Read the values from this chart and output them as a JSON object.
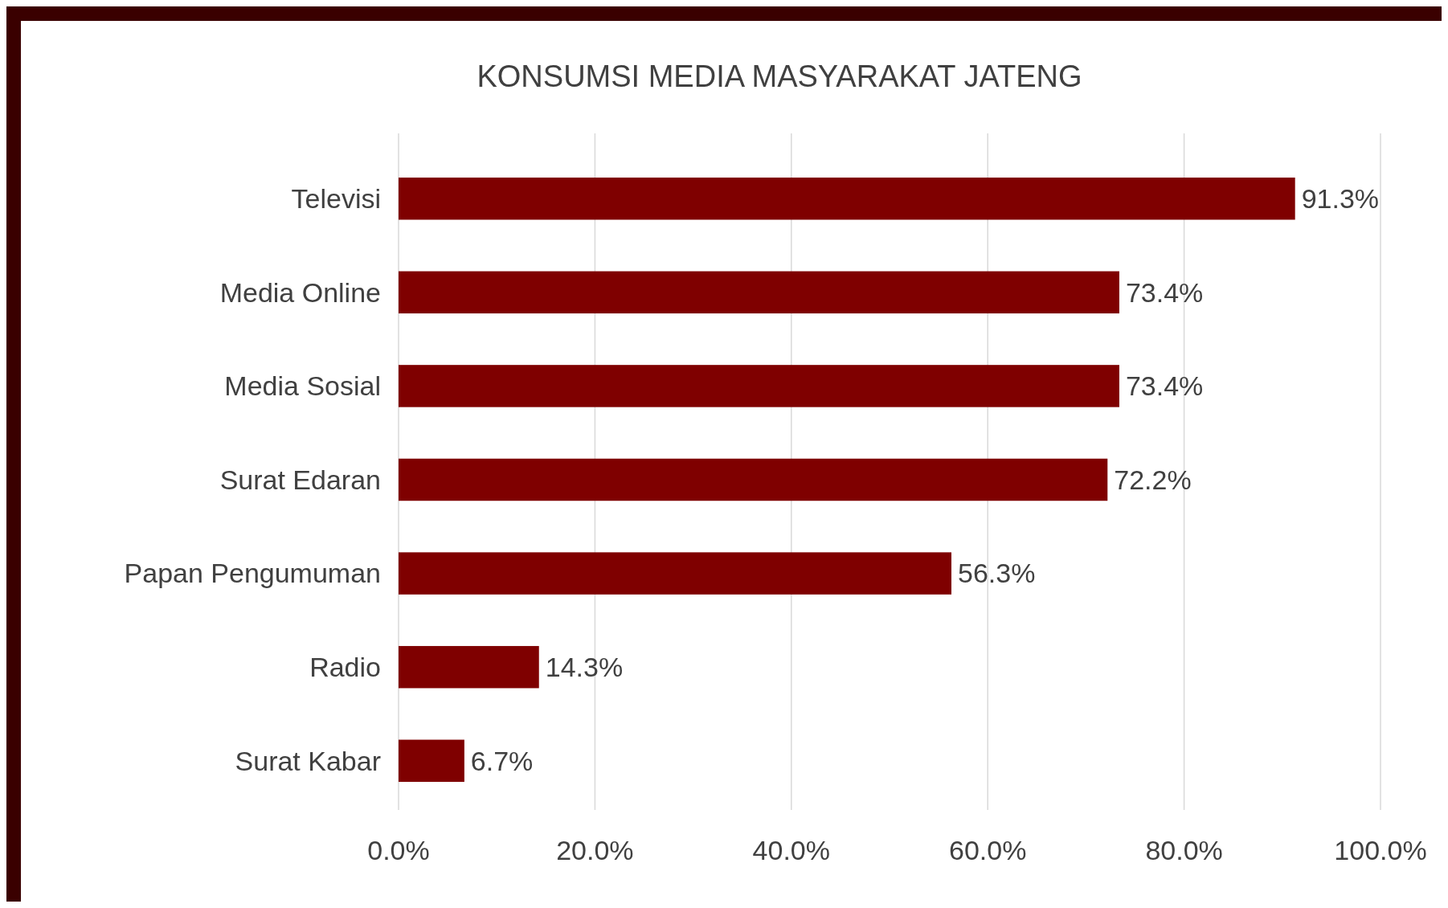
{
  "chart_data": {
    "type": "bar",
    "orientation": "horizontal",
    "title": "KONSUMSI MEDIA MASYARAKAT JATENG",
    "categories": [
      "Televisi",
      "Media Online",
      "Media Sosial",
      "Surat Edaran",
      "Papan Pengumuman",
      "Radio",
      "Surat Kabar"
    ],
    "values": [
      91.3,
      73.4,
      73.4,
      72.2,
      56.3,
      14.3,
      6.7
    ],
    "value_labels": [
      "91.3%",
      "73.4%",
      "73.4%",
      "72.2%",
      "56.3%",
      "14.3%",
      "6.7%"
    ],
    "color": "#7f0000",
    "xlim": [
      0,
      100
    ],
    "xticks": [
      {
        "value": 0,
        "label": "0.0%"
      },
      {
        "value": 20,
        "label": "20.0%"
      },
      {
        "value": 40,
        "label": "40.0%"
      },
      {
        "value": 60,
        "label": "60.0%"
      },
      {
        "value": 80,
        "label": "80.0%"
      },
      {
        "value": 100,
        "label": "100.0%"
      }
    ],
    "grid": "x"
  }
}
